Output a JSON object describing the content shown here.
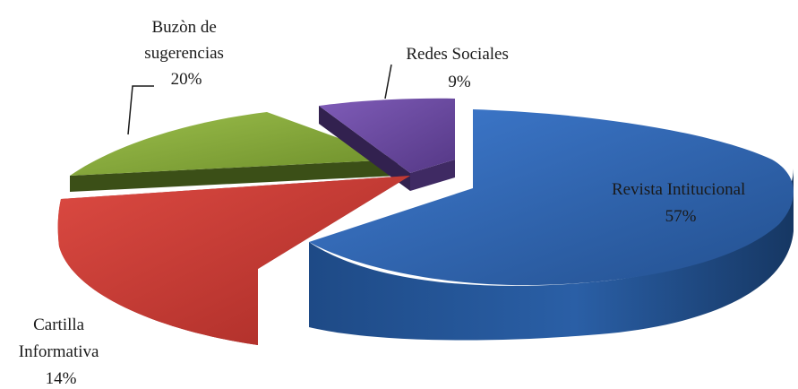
{
  "chart_data": {
    "type": "pie",
    "three_d": true,
    "exploded": true,
    "title": "",
    "slices": [
      {
        "label_lines": [
          "Revista Intitucional",
          "57%"
        ],
        "value": 57,
        "color": "#2d62ad",
        "color_dark": "#1b3c6b"
      },
      {
        "label_lines": [
          "Cartilla",
          "Informativa",
          "14%"
        ],
        "value": 14,
        "color": "#c93a34",
        "color_dark": "#6e1a17"
      },
      {
        "label_lines": [
          "Buzòn de",
          "sugerencias",
          "20%"
        ],
        "value": 20,
        "color": "#86a83c",
        "color_dark": "#3f5418"
      },
      {
        "label_lines": [
          "Redes Sociales",
          "9%"
        ],
        "value": 9,
        "color": "#6a4a9c",
        "color_dark": "#3a2858"
      }
    ]
  }
}
